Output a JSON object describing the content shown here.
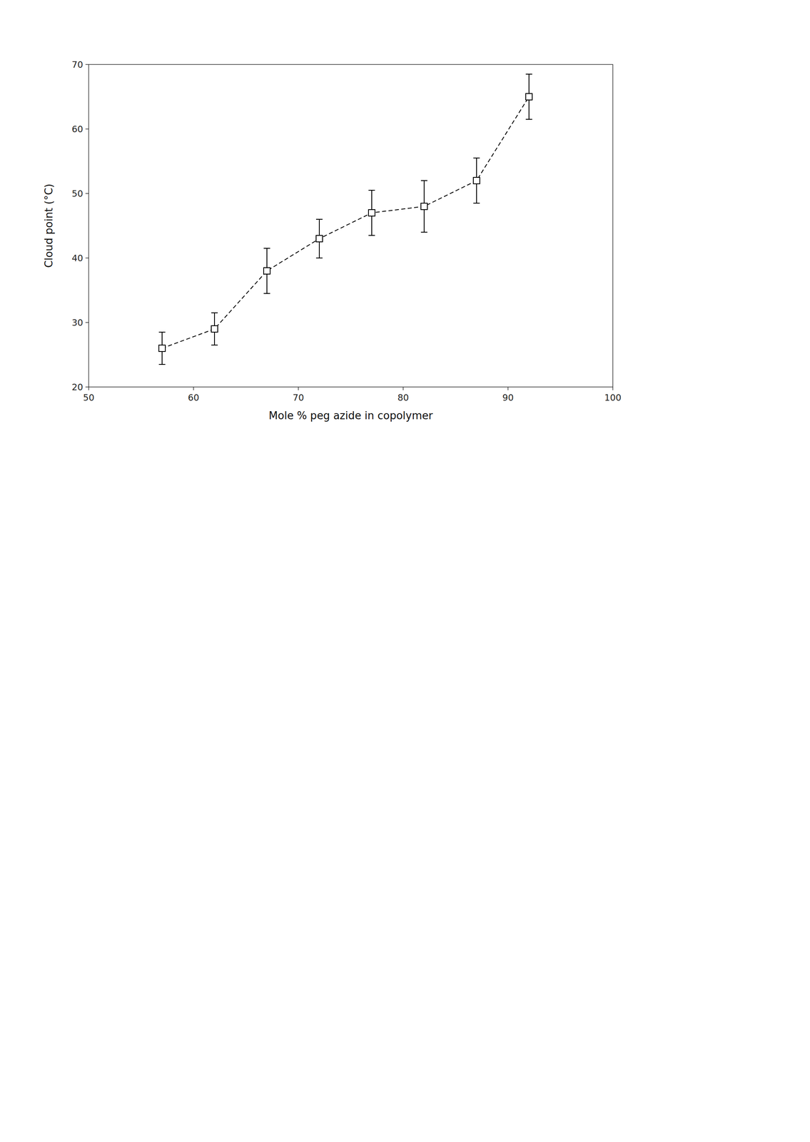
{
  "chart_data": {
    "type": "line",
    "xlabel": "Mole % peg azide in copolymer",
    "ylabel": "Cloud point (°C)",
    "x": [
      57,
      62,
      67,
      72,
      77,
      82,
      87,
      92
    ],
    "values": [
      26,
      29,
      38,
      43,
      47,
      48,
      52,
      65
    ],
    "errors_upper": [
      2.5,
      2.5,
      3.5,
      3.0,
      3.5,
      4.0,
      3.5,
      3.5
    ],
    "errors_lower": [
      2.5,
      2.5,
      3.5,
      3.0,
      3.5,
      4.0,
      3.5,
      3.5
    ],
    "xlim": [
      50,
      100
    ],
    "ylim": [
      20,
      70
    ],
    "xticks": [
      50,
      60,
      70,
      80,
      90,
      100
    ],
    "yticks": [
      20,
      30,
      40,
      50,
      60,
      70
    ],
    "color": "black",
    "marker": "square",
    "line_style": "dashed",
    "grid": false
  }
}
